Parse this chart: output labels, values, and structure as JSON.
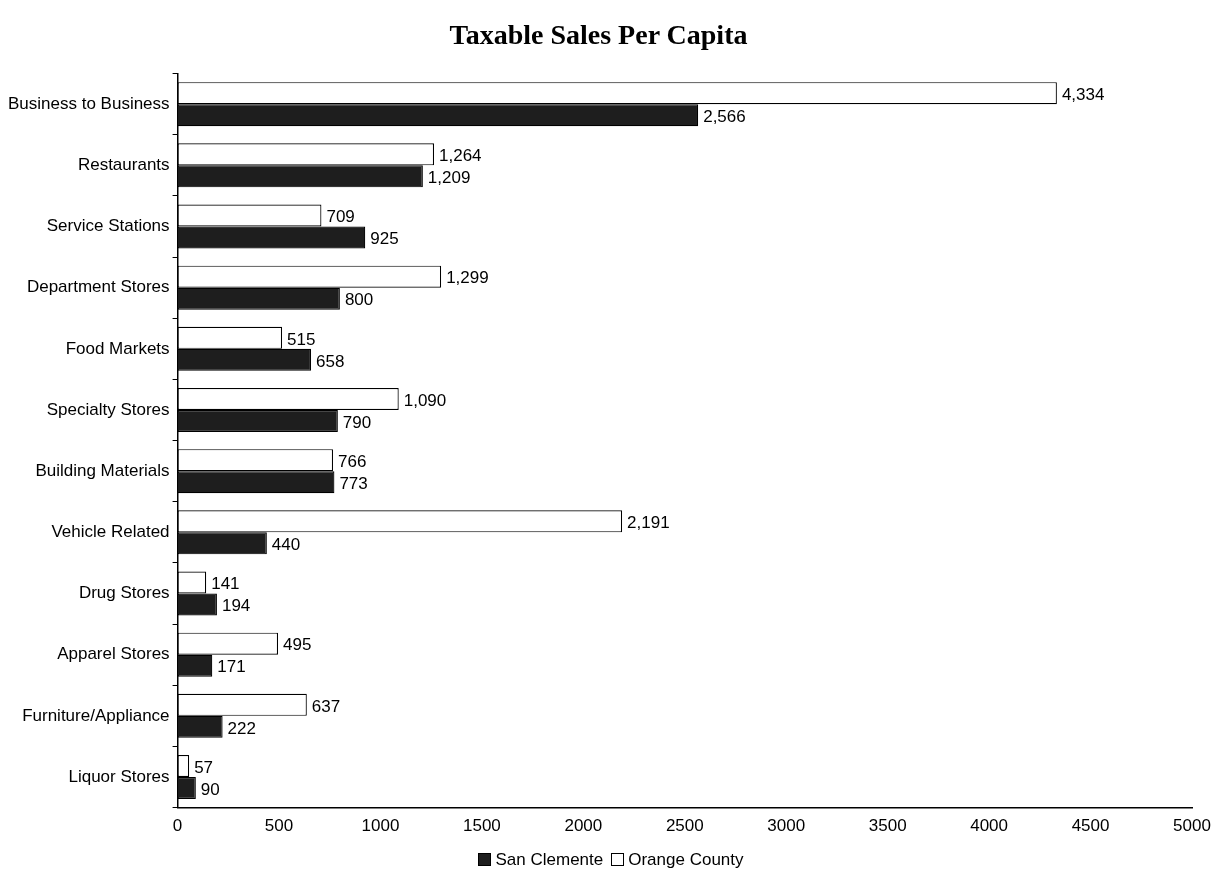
{
  "chart_data": {
    "type": "bar",
    "orientation": "horizontal",
    "title": "Taxable Sales Per Capita",
    "categories": [
      "Business to Business",
      "Restaurants",
      "Service Stations",
      "Department Stores",
      "Food Markets",
      "Specialty Stores",
      "Building Materials",
      "Vehicle Related",
      "Drug Stores",
      "Apparel Stores",
      "Furniture/Appliance",
      "Liquor Stores"
    ],
    "series": [
      {
        "name": "Orange County",
        "color": "#ffffff",
        "values": [
          4334,
          1264,
          709,
          1299,
          515,
          1090,
          766,
          2191,
          141,
          495,
          637,
          57
        ],
        "value_labels": [
          "4,334",
          "1,264",
          "709",
          "1,299",
          "515",
          "1,090",
          "766",
          "2,191",
          "141",
          "495",
          "637",
          "57"
        ]
      },
      {
        "name": "San Clemente",
        "color": "#1e1e1e",
        "values": [
          2566,
          1209,
          925,
          800,
          658,
          790,
          773,
          440,
          194,
          171,
          222,
          90
        ],
        "value_labels": [
          "2,566",
          "1,209",
          "925",
          "800",
          "658",
          "790",
          "773",
          "440",
          "194",
          "171",
          "222",
          "90"
        ]
      }
    ],
    "xlim": [
      0,
      5000
    ],
    "xticks": [
      0,
      500,
      1000,
      1500,
      2000,
      2500,
      3000,
      3500,
      4000,
      4500,
      5000
    ],
    "grid": false,
    "legend": "bottom"
  }
}
